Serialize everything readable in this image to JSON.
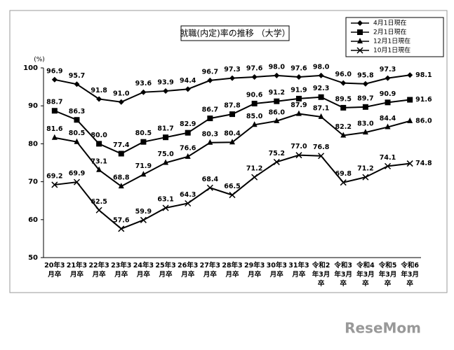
{
  "chart_data": {
    "type": "line",
    "title": "就職(内定)率の推移 （大学）",
    "y_unit": "(%)",
    "categories": [
      "20年3月卒",
      "21年3月卒",
      "22年3月卒",
      "23年3月卒",
      "24年3月卒",
      "25年3月卒",
      "26年3月卒",
      "27年3月卒",
      "28年3月卒",
      "29年3月卒",
      "30年3月卒",
      "31年3月卒",
      "令和2年3月卒",
      "令和3年3月卒",
      "令和4年3月卒",
      "令和5年3月卒",
      "令和6年3月卒"
    ],
    "ylim": [
      50,
      100
    ],
    "yticks": [
      50,
      60,
      70,
      80,
      90,
      100
    ],
    "grid": false,
    "legend": "top-right",
    "series": [
      {
        "name": "4月1日現在",
        "color": "#000000",
        "marker": "diamond",
        "values": [
          96.9,
          95.7,
          91.8,
          91.0,
          93.6,
          93.9,
          94.4,
          96.7,
          97.3,
          97.6,
          98.0,
          97.6,
          98.0,
          96.0,
          95.8,
          97.3,
          98.1
        ],
        "value_labels": [
          "96.9",
          "95.7",
          "91.8",
          "91.0",
          "93.6",
          "93.9",
          "94.4",
          "96.7",
          "97.3",
          "97.6",
          "98.0",
          "97.6",
          "98.0",
          "96.0",
          "95.8",
          "97.3",
          "98.1"
        ]
      },
      {
        "name": "2月1日現在",
        "color": "#000000",
        "marker": "square",
        "values": [
          88.7,
          86.3,
          80.0,
          77.4,
          80.5,
          81.7,
          82.9,
          86.7,
          87.8,
          90.6,
          91.2,
          91.9,
          92.3,
          89.5,
          89.7,
          90.9,
          91.6
        ],
        "value_labels": [
          "88.7",
          "86.3",
          "80.0",
          "77.4",
          "80.5",
          "81.7",
          "82.9",
          "86.7",
          "87.8",
          "90.6",
          "91.2",
          "91.9",
          "92.3",
          "89.5",
          "89.7",
          "90.9",
          "91.6"
        ]
      },
      {
        "name": "12月1日現在",
        "color": "#000000",
        "marker": "triangle",
        "values": [
          81.6,
          80.5,
          73.1,
          68.8,
          71.9,
          75.0,
          76.6,
          80.3,
          80.4,
          85.0,
          86.0,
          87.9,
          87.1,
          82.2,
          83.0,
          84.4,
          86.0
        ],
        "value_labels": [
          "81.6",
          "80.5",
          "73.1",
          "68.8",
          "71.9",
          "75.0",
          "76.6",
          "80.3",
          "80.4",
          "85.0",
          "86.0",
          "87.9",
          "87.1",
          "82.2",
          "83.0",
          "84.4",
          "86.0"
        ]
      },
      {
        "name": "10月1日現在",
        "color": "#000000",
        "marker": "x",
        "values": [
          69.2,
          69.9,
          62.5,
          57.6,
          59.9,
          63.1,
          64.3,
          68.4,
          66.5,
          71.2,
          75.2,
          77.0,
          76.8,
          69.8,
          71.2,
          74.1,
          74.8
        ],
        "value_labels": [
          "69.2",
          "69.9",
          "62.5",
          "57.6",
          "59.9",
          "63.1",
          "64.3",
          "68.4",
          "66.5",
          "71.2",
          "75.2",
          "77.0",
          "76.8",
          "69.8",
          "71.2",
          "74.1",
          "74.8"
        ]
      }
    ],
    "watermark": "ReseMom"
  }
}
